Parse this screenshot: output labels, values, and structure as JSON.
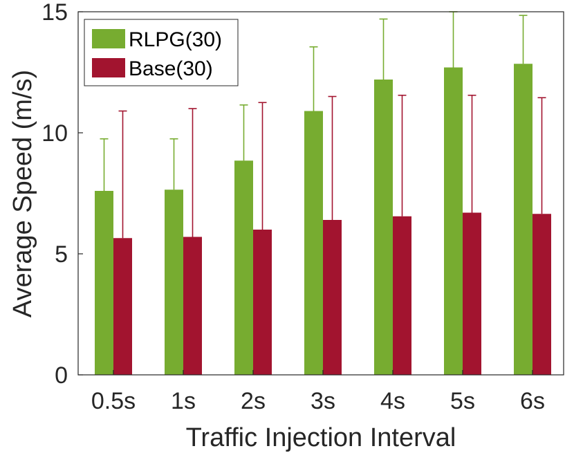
{
  "chart_data": {
    "type": "bar",
    "xlabel": "Traffic Injection Interval",
    "ylabel": "Average Speed (m/s)",
    "categories": [
      "0.5s",
      "1s",
      "2s",
      "3s",
      "4s",
      "5s",
      "6s"
    ],
    "ylim": [
      0,
      15
    ],
    "yticks": [
      0,
      5,
      10,
      15
    ],
    "grid": false,
    "legend_position": "top-left",
    "series": [
      {
        "name": "RLPG(30)",
        "color": "#77AC30",
        "values": [
          7.6,
          7.65,
          8.85,
          10.9,
          12.2,
          12.7,
          12.85
        ],
        "error_upper": [
          9.75,
          9.75,
          11.15,
          13.55,
          14.7,
          15.0,
          14.85
        ]
      },
      {
        "name": "Base(30)",
        "color": "#A2142F",
        "values": [
          5.65,
          5.7,
          6.0,
          6.4,
          6.55,
          6.7,
          6.65
        ],
        "error_upper": [
          10.9,
          11.0,
          11.25,
          11.5,
          11.55,
          11.55,
          11.45
        ]
      }
    ]
  }
}
